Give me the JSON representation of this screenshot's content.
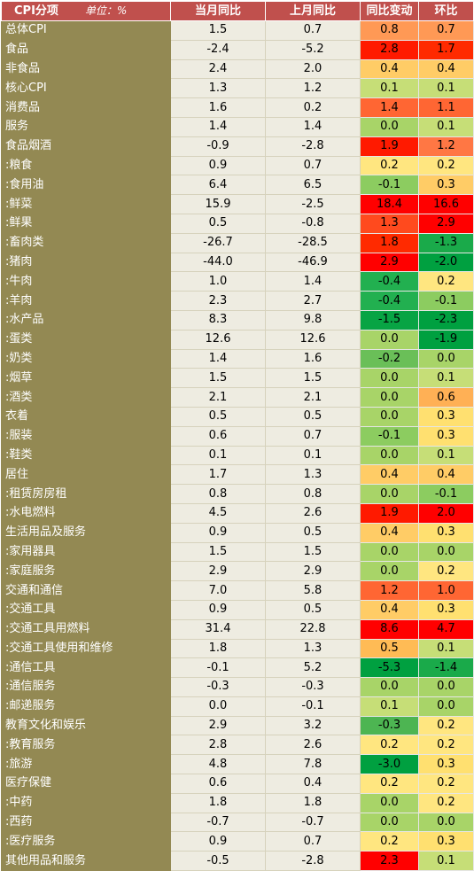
{
  "header": {
    "category": "CPI分项",
    "unit": "单位：%",
    "current_yoy": "当月同比",
    "previous_yoy": "上月同比",
    "yoy_change": "同比变动",
    "mom": "环比"
  },
  "colors": {
    "header_bg": "#c0504d",
    "name_bg": "#938953",
    "value_bg": "#eeece1"
  },
  "rows": [
    {
      "name": "总体CPI",
      "cur": "1.5",
      "prev": "0.7",
      "chg": "0.8",
      "mom": "0.7",
      "chg_color": "#ff9955",
      "mom_color": "#ff9955",
      "group_start": true
    },
    {
      "name": "食品",
      "cur": "-2.4",
      "prev": "-5.2",
      "chg": "2.8",
      "mom": "1.7",
      "chg_color": "#ff1a00",
      "mom_color": "#ff2a00",
      "group_start": false
    },
    {
      "name": "非食品",
      "cur": "2.4",
      "prev": "2.0",
      "chg": "0.4",
      "mom": "0.4",
      "chg_color": "#ffcc66",
      "mom_color": "#ffcc66",
      "group_start": false
    },
    {
      "name": "核心CPI",
      "cur": "1.3",
      "prev": "1.2",
      "chg": "0.1",
      "mom": "0.1",
      "chg_color": "#c6de77",
      "mom_color": "#c6de77",
      "group_start": true
    },
    {
      "name": "消费品",
      "cur": "1.6",
      "prev": "0.2",
      "chg": "1.4",
      "mom": "1.1",
      "chg_color": "#ff6633",
      "mom_color": "#ff6633",
      "group_start": false
    },
    {
      "name": "服务",
      "cur": "1.4",
      "prev": "1.4",
      "chg": "0.0",
      "mom": "0.1",
      "chg_color": "#a8d468",
      "mom_color": "#c6de77",
      "group_start": false
    },
    {
      "name": "食品烟酒",
      "cur": "-0.9",
      "prev": "-2.8",
      "chg": "1.9",
      "mom": "1.2",
      "chg_color": "#ff1a00",
      "mom_color": "#ff7744",
      "group_start": true
    },
    {
      "name": ":粮食",
      "cur": "0.9",
      "prev": "0.7",
      "chg": "0.2",
      "mom": "0.2",
      "chg_color": "#ffe680",
      "mom_color": "#ffe680",
      "group_start": false
    },
    {
      "name": ":食用油",
      "cur": "6.4",
      "prev": "6.5",
      "chg": "-0.1",
      "mom": "0.3",
      "chg_color": "#8ccc60",
      "mom_color": "#ffcc66",
      "group_start": false
    },
    {
      "name": ":鲜菜",
      "cur": "15.9",
      "prev": "-2.5",
      "chg": "18.4",
      "mom": "16.6",
      "chg_color": "#ff0000",
      "mom_color": "#ff0000",
      "group_start": false
    },
    {
      "name": ":鲜果",
      "cur": "0.5",
      "prev": "-0.8",
      "chg": "1.3",
      "mom": "2.9",
      "chg_color": "#ff4a1e",
      "mom_color": "#ff0000",
      "group_start": false
    },
    {
      "name": ":畜肉类",
      "cur": "-26.7",
      "prev": "-28.5",
      "chg": "1.8",
      "mom": "-1.3",
      "chg_color": "#ff2a00",
      "mom_color": "#1aaa4a",
      "group_start": false
    },
    {
      "name": ":猪肉",
      "cur": "-44.0",
      "prev": "-46.9",
      "chg": "2.9",
      "mom": "-2.0",
      "chg_color": "#ff0000",
      "mom_color": "#00a040",
      "group_start": false
    },
    {
      "name": ":牛肉",
      "cur": "1.0",
      "prev": "1.4",
      "chg": "-0.4",
      "mom": "0.2",
      "chg_color": "#22b050",
      "mom_color": "#ffe680",
      "group_start": false
    },
    {
      "name": ":羊肉",
      "cur": "2.3",
      "prev": "2.7",
      "chg": "-0.4",
      "mom": "-0.1",
      "chg_color": "#22b050",
      "mom_color": "#8ccc60",
      "group_start": false
    },
    {
      "name": ":水产品",
      "cur": "8.3",
      "prev": "9.8",
      "chg": "-1.5",
      "mom": "-2.3",
      "chg_color": "#08a444",
      "mom_color": "#00a040",
      "group_start": false
    },
    {
      "name": ":蛋类",
      "cur": "12.6",
      "prev": "12.6",
      "chg": "0.0",
      "mom": "-1.9",
      "chg_color": "#a8d468",
      "mom_color": "#00a040",
      "group_start": false
    },
    {
      "name": ":奶类",
      "cur": "1.4",
      "prev": "1.6",
      "chg": "-0.2",
      "mom": "0.0",
      "chg_color": "#6abf58",
      "mom_color": "#a8d468",
      "group_start": false
    },
    {
      "name": ":烟草",
      "cur": "1.5",
      "prev": "1.5",
      "chg": "0.0",
      "mom": "0.1",
      "chg_color": "#a8d468",
      "mom_color": "#c6de77",
      "group_start": false
    },
    {
      "name": ":酒类",
      "cur": "2.1",
      "prev": "2.1",
      "chg": "0.0",
      "mom": "0.6",
      "chg_color": "#a8d468",
      "mom_color": "#ffb055",
      "group_start": false
    },
    {
      "name": "衣着",
      "cur": "0.5",
      "prev": "0.5",
      "chg": "0.0",
      "mom": "0.3",
      "chg_color": "#a8d468",
      "mom_color": "#ffe070",
      "group_start": true
    },
    {
      "name": ":服装",
      "cur": "0.6",
      "prev": "0.7",
      "chg": "-0.1",
      "mom": "0.3",
      "chg_color": "#8ccc60",
      "mom_color": "#ffe070",
      "group_start": false
    },
    {
      "name": ":鞋类",
      "cur": "0.1",
      "prev": "0.1",
      "chg": "0.0",
      "mom": "0.1",
      "chg_color": "#a8d468",
      "mom_color": "#c6de77",
      "group_start": false
    },
    {
      "name": "居住",
      "cur": "1.7",
      "prev": "1.3",
      "chg": "0.4",
      "mom": "0.4",
      "chg_color": "#ffcc66",
      "mom_color": "#ffcc66",
      "group_start": true
    },
    {
      "name": ":租赁房房租",
      "cur": "0.8",
      "prev": "0.8",
      "chg": "0.0",
      "mom": "-0.1",
      "chg_color": "#a8d468",
      "mom_color": "#8ccc60",
      "group_start": false
    },
    {
      "name": ":水电燃料",
      "cur": "4.5",
      "prev": "2.6",
      "chg": "1.9",
      "mom": "2.0",
      "chg_color": "#ff1a00",
      "mom_color": "#ff0000",
      "group_start": false
    },
    {
      "name": "生活用品及服务",
      "cur": "0.9",
      "prev": "0.5",
      "chg": "0.4",
      "mom": "0.3",
      "chg_color": "#ffcc66",
      "mom_color": "#ffe070",
      "group_start": true
    },
    {
      "name": ":家用器具",
      "cur": "1.5",
      "prev": "1.5",
      "chg": "0.0",
      "mom": "0.0",
      "chg_color": "#a8d468",
      "mom_color": "#a8d468",
      "group_start": false
    },
    {
      "name": ":家庭服务",
      "cur": "2.9",
      "prev": "2.9",
      "chg": "0.0",
      "mom": "0.2",
      "chg_color": "#a8d468",
      "mom_color": "#ffe680",
      "group_start": false
    },
    {
      "name": "交通和通信",
      "cur": "7.0",
      "prev": "5.8",
      "chg": "1.2",
      "mom": "1.0",
      "chg_color": "#ff6633",
      "mom_color": "#ff6633",
      "group_start": true
    },
    {
      "name": ":交通工具",
      "cur": "0.9",
      "prev": "0.5",
      "chg": "0.4",
      "mom": "0.3",
      "chg_color": "#ffcc66",
      "mom_color": "#ffe070",
      "group_start": false
    },
    {
      "name": ":交通工具用燃料",
      "cur": "31.4",
      "prev": "22.8",
      "chg": "8.6",
      "mom": "4.7",
      "chg_color": "#ff0000",
      "mom_color": "#ff0000",
      "group_start": false
    },
    {
      "name": ":交通工具使用和维修",
      "cur": "1.8",
      "prev": "1.3",
      "chg": "0.5",
      "mom": "0.1",
      "chg_color": "#ffbb55",
      "mom_color": "#c6de77",
      "group_start": false
    },
    {
      "name": ":通信工具",
      "cur": "-0.1",
      "prev": "5.2",
      "chg": "-5.3",
      "mom": "-1.4",
      "chg_color": "#00a040",
      "mom_color": "#1aaa4a",
      "group_start": false
    },
    {
      "name": ":通信服务",
      "cur": "-0.3",
      "prev": "-0.3",
      "chg": "0.0",
      "mom": "0.0",
      "chg_color": "#a8d468",
      "mom_color": "#a8d468",
      "group_start": false
    },
    {
      "name": ":邮递服务",
      "cur": "0.0",
      "prev": "-0.1",
      "chg": "0.1",
      "mom": "0.0",
      "chg_color": "#c6de77",
      "mom_color": "#a8d468",
      "group_start": false
    },
    {
      "name": "教育文化和娱乐",
      "cur": "2.9",
      "prev": "3.2",
      "chg": "-0.3",
      "mom": "0.2",
      "chg_color": "#4db552",
      "mom_color": "#ffe680",
      "group_start": true
    },
    {
      "name": ":教育服务",
      "cur": "2.8",
      "prev": "2.6",
      "chg": "0.2",
      "mom": "0.2",
      "chg_color": "#ffe680",
      "mom_color": "#ffe680",
      "group_start": false
    },
    {
      "name": ":旅游",
      "cur": "4.8",
      "prev": "7.8",
      "chg": "-3.0",
      "mom": "0.3",
      "chg_color": "#00a040",
      "mom_color": "#ffe070",
      "group_start": false
    },
    {
      "name": "医疗保健",
      "cur": "0.6",
      "prev": "0.4",
      "chg": "0.2",
      "mom": "0.2",
      "chg_color": "#ffe680",
      "mom_color": "#ffe680",
      "group_start": true
    },
    {
      "name": ":中药",
      "cur": "1.8",
      "prev": "1.8",
      "chg": "0.0",
      "mom": "0.2",
      "chg_color": "#a8d468",
      "mom_color": "#ffe680",
      "group_start": false
    },
    {
      "name": ":西药",
      "cur": "-0.7",
      "prev": "-0.7",
      "chg": "0.0",
      "mom": "0.0",
      "chg_color": "#a8d468",
      "mom_color": "#a8d468",
      "group_start": false
    },
    {
      "name": ":医疗服务",
      "cur": "0.9",
      "prev": "0.7",
      "chg": "0.2",
      "mom": "0.3",
      "chg_color": "#ffe680",
      "mom_color": "#ffe070",
      "group_start": false
    },
    {
      "name": "其他用品和服务",
      "cur": "-0.5",
      "prev": "-2.8",
      "chg": "2.3",
      "mom": "0.1",
      "chg_color": "#ff0000",
      "mom_color": "#c6de77",
      "group_start": true
    }
  ]
}
